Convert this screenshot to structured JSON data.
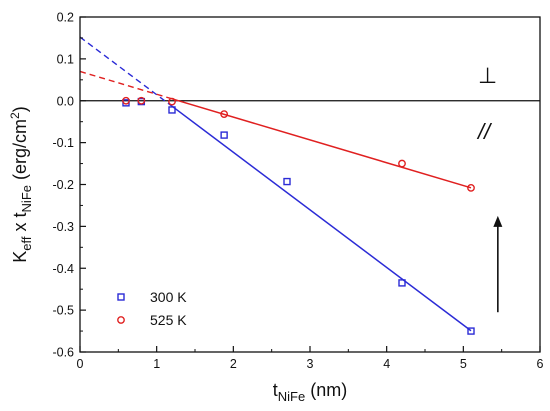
{
  "chart_data": {
    "type": "scatter",
    "xlabel": {
      "main": "t",
      "sub": "NiFe",
      "unit": " (nm)"
    },
    "ylabel": {
      "main": "K",
      "sub1": "eff",
      "mid": " x t",
      "sub2": "NiFe",
      "unit": " (erg/cm",
      "sup": "2",
      "close": ")"
    },
    "xlim": [
      0,
      6
    ],
    "ylim": [
      -0.6,
      0.2
    ],
    "x_ticks": [
      0,
      1,
      2,
      3,
      4,
      5,
      6
    ],
    "y_ticks": [
      0.2,
      0.1,
      0.0,
      -0.1,
      -0.2,
      -0.3,
      -0.4,
      -0.5,
      -0.6
    ],
    "x_tick_labels": [
      "0",
      "1",
      "2",
      "3",
      "4",
      "5",
      "6"
    ],
    "y_tick_labels": [
      "0.2",
      "0.1",
      "0.0",
      "-0.1",
      "-0.2",
      "-0.3",
      "-0.4",
      "-0.5",
      "-0.6"
    ],
    "zero_line": 0.0,
    "legend_position": "bottom-left",
    "series": [
      {
        "name": "300 K",
        "color": "#2b2bd6",
        "marker": "square",
        "points": [
          [
            0.6,
            -0.005
          ],
          [
            0.8,
            -0.002
          ],
          [
            1.2,
            -0.022
          ],
          [
            1.88,
            -0.082
          ],
          [
            2.7,
            -0.193
          ],
          [
            4.2,
            -0.435
          ],
          [
            5.1,
            -0.55
          ]
        ],
        "fit": {
          "intercept": 0.152,
          "slope": -0.1375,
          "dashed_until": 1.2,
          "solid_until": 5.1
        }
      },
      {
        "name": "525 K",
        "color": "#e02020",
        "marker": "circle",
        "points": [
          [
            0.6,
            0.0
          ],
          [
            0.8,
            0.0
          ],
          [
            1.2,
            -0.002
          ],
          [
            1.88,
            -0.032
          ],
          [
            4.2,
            -0.15
          ],
          [
            5.1,
            -0.208
          ]
        ],
        "fit": {
          "intercept": 0.07,
          "slope": -0.0545,
          "dashed_until": 1.2,
          "solid_until": 5.1
        }
      }
    ],
    "annotations": {
      "perpendicular": "⊥",
      "parallel": "//",
      "arrow": {
        "x": 5.45,
        "y_from": -0.505,
        "y_to": -0.275
      }
    }
  }
}
